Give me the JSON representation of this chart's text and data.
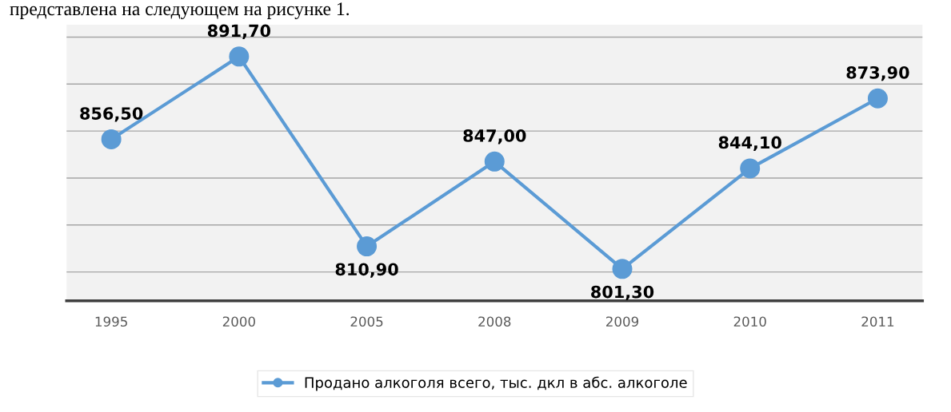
{
  "chart_data": {
    "type": "line",
    "annotations": [
      "представлена на следующем на рисунке 1."
    ],
    "categories": [
      "1995",
      "2000",
      "2005",
      "2008",
      "2009",
      "2010",
      "2011"
    ],
    "series": [
      {
        "name": "Продано алкоголя всего, тыс. дкл в абс. алкоголе",
        "color": "#5b9bd5",
        "values": [
          856.5,
          891.7,
          810.9,
          847.0,
          801.3,
          844.1,
          873.9
        ],
        "value_labels": [
          "856,50",
          "891,70",
          "810,90",
          "847,00",
          "801,30",
          "844,10",
          "873,90"
        ]
      }
    ],
    "tick_labels": "x",
    "grid": "y",
    "legend": "bottom",
    "marker": "circle",
    "line_style": "solid"
  }
}
